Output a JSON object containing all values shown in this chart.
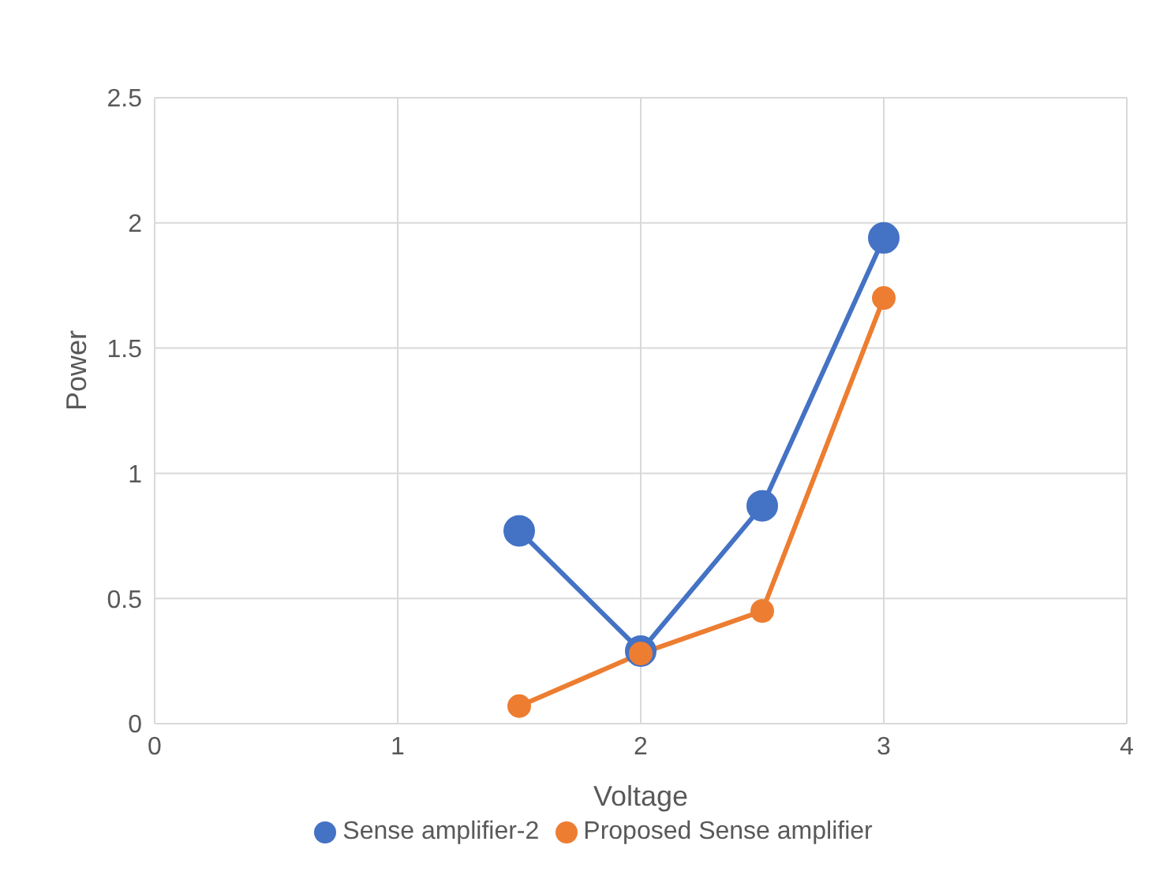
{
  "chart_data": {
    "type": "line",
    "xlabel": "Voltage",
    "ylabel": "Power",
    "x": [
      1.5,
      2,
      2.5,
      3
    ],
    "series": [
      {
        "name": "Sense amplifier-2",
        "color": "#4472c4",
        "values": [
          0.77,
          0.29,
          0.87,
          1.94
        ]
      },
      {
        "name": "Proposed Sense amplifier",
        "color": "#ed7d31",
        "values": [
          0.07,
          0.28,
          0.45,
          1.7
        ]
      }
    ],
    "xlim": [
      0,
      4
    ],
    "xticks": [
      0,
      1,
      2,
      3,
      4
    ],
    "ylim": [
      0,
      2.5
    ],
    "yticks": [
      0,
      0.5,
      1,
      1.5,
      2,
      2.5
    ],
    "grid": true,
    "legend": "bottom",
    "marker": "circle",
    "line_style": "solid"
  }
}
